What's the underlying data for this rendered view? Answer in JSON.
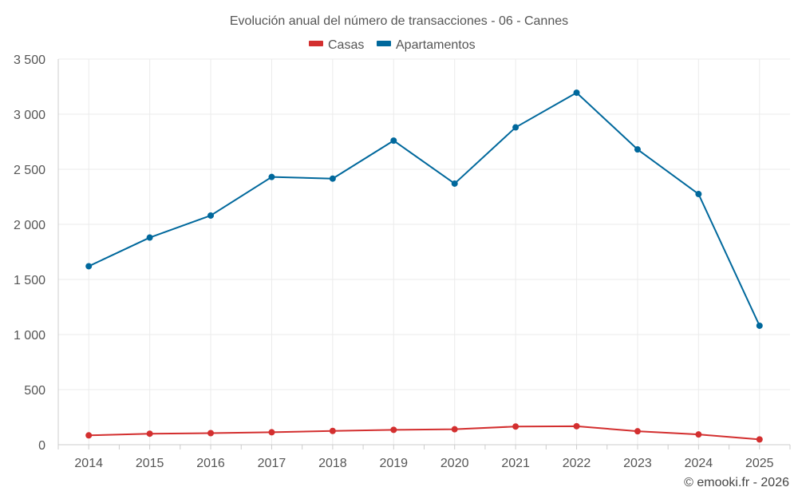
{
  "chart_data": {
    "type": "line",
    "title": "Evolución anual del número de transacciones - 06 - Cannes",
    "categories": [
      "2014",
      "2015",
      "2016",
      "2017",
      "2018",
      "2019",
      "2020",
      "2021",
      "2022",
      "2023",
      "2024",
      "2025"
    ],
    "series": [
      {
        "name": "Casas",
        "color": "#d32f2f",
        "values": [
          85,
          100,
          105,
          113,
          125,
          135,
          140,
          165,
          168,
          122,
          93,
          48
        ]
      },
      {
        "name": "Apartamentos",
        "color": "#00689c",
        "values": [
          1620,
          1880,
          2080,
          2430,
          2415,
          2760,
          2370,
          2880,
          3195,
          2680,
          2275,
          1080
        ]
      }
    ],
    "y_ticks": [
      0,
      500,
      1000,
      1500,
      2000,
      2500,
      3000,
      3500
    ],
    "y_tick_labels": [
      "0",
      "500",
      "1 000",
      "1 500",
      "2 000",
      "2 500",
      "3 000",
      "3 500"
    ],
    "ylim": [
      0,
      3500
    ],
    "xlabel": "",
    "ylabel": "",
    "legend_position": "top-center",
    "grid": true
  },
  "credit": "© emooki.fr - 2026"
}
